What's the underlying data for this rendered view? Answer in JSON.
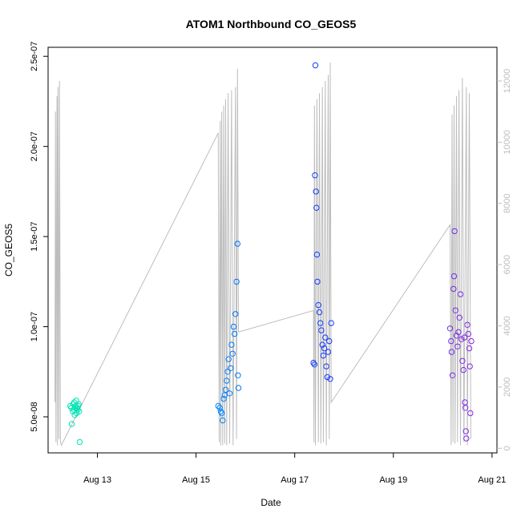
{
  "chart_data": {
    "type": "scatter",
    "title": "ATOM1 Northbound CO_GEOS5",
    "xlabel": "Date",
    "ylabel": "CO_GEOS5",
    "x_ticks": [
      "Aug 13",
      "Aug 15",
      "Aug 17",
      "Aug 19",
      "Aug 21"
    ],
    "y_ticks": [
      "5.0e-08",
      "1.0e-07",
      "1.5e-07",
      "2.0e-07",
      "2.5e-07"
    ],
    "y2_ticks": [
      "0",
      "2000",
      "4000",
      "6000",
      "8000",
      "10000",
      "12000"
    ],
    "xlim": [
      "2016-08-12",
      "2016-08-21"
    ],
    "ylim": [
      3e-08,
      2.55e-07
    ],
    "y2lim": [
      -150,
      13100
    ],
    "x_unit_origin": "2016-08-13",
    "series": [
      {
        "marker": "open-circle",
        "color_scale": [
          "#00e5b0",
          "#00c0ff",
          "#0050ff",
          "#2a2aff",
          "#8a2be2"
        ],
        "points": [
          {
            "x": -0.55,
            "y": 5.6e-08
          },
          {
            "x": -0.53,
            "y": 5.5e-08
          },
          {
            "x": -0.52,
            "y": 4.6e-08
          },
          {
            "x": -0.5,
            "y": 5.3e-08
          },
          {
            "x": -0.49,
            "y": 5.7e-08
          },
          {
            "x": -0.48,
            "y": 5.4e-08
          },
          {
            "x": -0.47,
            "y": 5.8e-08
          },
          {
            "x": -0.46,
            "y": 5.1e-08
          },
          {
            "x": -0.45,
            "y": 5.5e-08
          },
          {
            "x": -0.44,
            "y": 5.6e-08
          },
          {
            "x": -0.43,
            "y": 5.9e-08
          },
          {
            "x": -0.42,
            "y": 5.2e-08
          },
          {
            "x": -0.41,
            "y": 5.5e-08
          },
          {
            "x": -0.4,
            "y": 5.4e-08
          },
          {
            "x": -0.39,
            "y": 5.6e-08
          },
          {
            "x": -0.38,
            "y": 5.7e-08
          },
          {
            "x": -0.37,
            "y": 5.3e-08
          },
          {
            "x": -0.36,
            "y": 3.6e-08
          },
          {
            "x": 2.45,
            "y": 5.6e-08
          },
          {
            "x": 2.48,
            "y": 5.5e-08
          },
          {
            "x": 2.5,
            "y": 5.3e-08
          },
          {
            "x": 2.52,
            "y": 5.2e-08
          },
          {
            "x": 2.54,
            "y": 4.8e-08
          },
          {
            "x": 2.56,
            "y": 6e-08
          },
          {
            "x": 2.58,
            "y": 6.2e-08
          },
          {
            "x": 2.6,
            "y": 6.5e-08
          },
          {
            "x": 2.62,
            "y": 7e-08
          },
          {
            "x": 2.64,
            "y": 7.5e-08
          },
          {
            "x": 2.66,
            "y": 8.2e-08
          },
          {
            "x": 2.68,
            "y": 6.3e-08
          },
          {
            "x": 2.7,
            "y": 7.7e-08
          },
          {
            "x": 2.72,
            "y": 9e-08
          },
          {
            "x": 2.74,
            "y": 8.5e-08
          },
          {
            "x": 2.76,
            "y": 1e-07
          },
          {
            "x": 2.78,
            "y": 9.6e-08
          },
          {
            "x": 2.8,
            "y": 1.07e-07
          },
          {
            "x": 2.82,
            "y": 1.25e-07
          },
          {
            "x": 2.84,
            "y": 1.46e-07
          },
          {
            "x": 2.85,
            "y": 7.3e-08
          },
          {
            "x": 2.86,
            "y": 6.6e-08
          },
          {
            "x": 4.38,
            "y": 8e-08
          },
          {
            "x": 4.4,
            "y": 7.9e-08
          },
          {
            "x": 4.41,
            "y": 1.84e-07
          },
          {
            "x": 4.42,
            "y": 2.45e-07
          },
          {
            "x": 4.43,
            "y": 1.75e-07
          },
          {
            "x": 4.44,
            "y": 1.66e-07
          },
          {
            "x": 4.45,
            "y": 1.4e-07
          },
          {
            "x": 4.46,
            "y": 1.25e-07
          },
          {
            "x": 4.48,
            "y": 1.12e-07
          },
          {
            "x": 4.5,
            "y": 1.08e-07
          },
          {
            "x": 4.52,
            "y": 1.02e-07
          },
          {
            "x": 4.54,
            "y": 9.8e-08
          },
          {
            "x": 4.56,
            "y": 9e-08
          },
          {
            "x": 4.58,
            "y": 8.4e-08
          },
          {
            "x": 4.6,
            "y": 8.8e-08
          },
          {
            "x": 4.62,
            "y": 9.4e-08
          },
          {
            "x": 4.64,
            "y": 7.8e-08
          },
          {
            "x": 4.66,
            "y": 7.2e-08
          },
          {
            "x": 4.68,
            "y": 8.6e-08
          },
          {
            "x": 4.7,
            "y": 9.2e-08
          },
          {
            "x": 4.72,
            "y": 7.1e-08
          },
          {
            "x": 4.74,
            "y": 1.02e-07
          },
          {
            "x": 7.15,
            "y": 9.9e-08
          },
          {
            "x": 7.17,
            "y": 9.2e-08
          },
          {
            "x": 7.18,
            "y": 8.6e-08
          },
          {
            "x": 7.2,
            "y": 7.3e-08
          },
          {
            "x": 7.22,
            "y": 1.21e-07
          },
          {
            "x": 7.23,
            "y": 1.28e-07
          },
          {
            "x": 7.24,
            "y": 1.53e-07
          },
          {
            "x": 7.26,
            "y": 1.09e-07
          },
          {
            "x": 7.28,
            "y": 9.5e-08
          },
          {
            "x": 7.3,
            "y": 8.9e-08
          },
          {
            "x": 7.32,
            "y": 9.7e-08
          },
          {
            "x": 7.34,
            "y": 1.05e-07
          },
          {
            "x": 7.36,
            "y": 1.18e-07
          },
          {
            "x": 7.38,
            "y": 9.3e-08
          },
          {
            "x": 7.4,
            "y": 8.1e-08
          },
          {
            "x": 7.42,
            "y": 7.6e-08
          },
          {
            "x": 7.44,
            "y": 9.4e-08
          },
          {
            "x": 7.45,
            "y": 5.8e-08
          },
          {
            "x": 7.46,
            "y": 5.5e-08
          },
          {
            "x": 7.47,
            "y": 4.2e-08
          },
          {
            "x": 7.48,
            "y": 3.8e-08
          },
          {
            "x": 7.5,
            "y": 1.01e-07
          },
          {
            "x": 7.52,
            "y": 9.6e-08
          },
          {
            "x": 7.54,
            "y": 8.8e-08
          },
          {
            "x": 7.55,
            "y": 7.8e-08
          },
          {
            "x": 7.56,
            "y": 5.2e-08
          },
          {
            "x": 7.58,
            "y": 9.2e-08
          }
        ]
      },
      {
        "color": "#bdbdbd",
        "axis": "right",
        "trace": [
          [
            -0.86,
            1500
          ],
          [
            -0.85,
            11000
          ],
          [
            -0.84,
            200
          ],
          [
            -0.82,
            11500
          ],
          [
            -0.81,
            100
          ],
          [
            -0.8,
            11800
          ],
          [
            -0.78,
            300
          ],
          [
            -0.77,
            12000
          ],
          [
            -0.75,
            200
          ],
          [
            -0.73,
            100
          ],
          [
            -0.7,
            200
          ],
          [
            2.45,
            10300
          ],
          [
            2.47,
            200
          ],
          [
            2.49,
            10700
          ],
          [
            2.5,
            100
          ],
          [
            2.52,
            11000
          ],
          [
            2.54,
            100
          ],
          [
            2.56,
            11200
          ],
          [
            2.58,
            150
          ],
          [
            2.6,
            11400
          ],
          [
            2.62,
            100
          ],
          [
            2.65,
            11600
          ],
          [
            2.68,
            150
          ],
          [
            2.72,
            11700
          ],
          [
            2.75,
            100
          ],
          [
            2.8,
            11800
          ],
          [
            2.82,
            300
          ],
          [
            2.84,
            12400
          ],
          [
            2.86,
            3800
          ],
          [
            4.38,
            4500
          ],
          [
            4.39,
            200
          ],
          [
            4.4,
            11200
          ],
          [
            4.42,
            100
          ],
          [
            4.45,
            11400
          ],
          [
            4.48,
            200
          ],
          [
            4.5,
            11600
          ],
          [
            4.53,
            150
          ],
          [
            4.56,
            11800
          ],
          [
            4.58,
            200
          ],
          [
            4.62,
            12000
          ],
          [
            4.64,
            100
          ],
          [
            4.68,
            12200
          ],
          [
            4.7,
            300
          ],
          [
            4.72,
            12600
          ],
          [
            4.74,
            1500
          ],
          [
            7.15,
            7300
          ],
          [
            7.17,
            100
          ],
          [
            7.19,
            10900
          ],
          [
            7.21,
            200
          ],
          [
            7.23,
            11200
          ],
          [
            7.25,
            150
          ],
          [
            7.28,
            11500
          ],
          [
            7.3,
            200
          ],
          [
            7.33,
            11700
          ],
          [
            7.36,
            100
          ],
          [
            7.4,
            12100
          ],
          [
            7.43,
            200
          ],
          [
            7.48,
            11800
          ],
          [
            7.5,
            100
          ],
          [
            7.54,
            11600
          ],
          [
            7.57,
            300
          ]
        ]
      }
    ],
    "grid": false,
    "legend": "none"
  }
}
